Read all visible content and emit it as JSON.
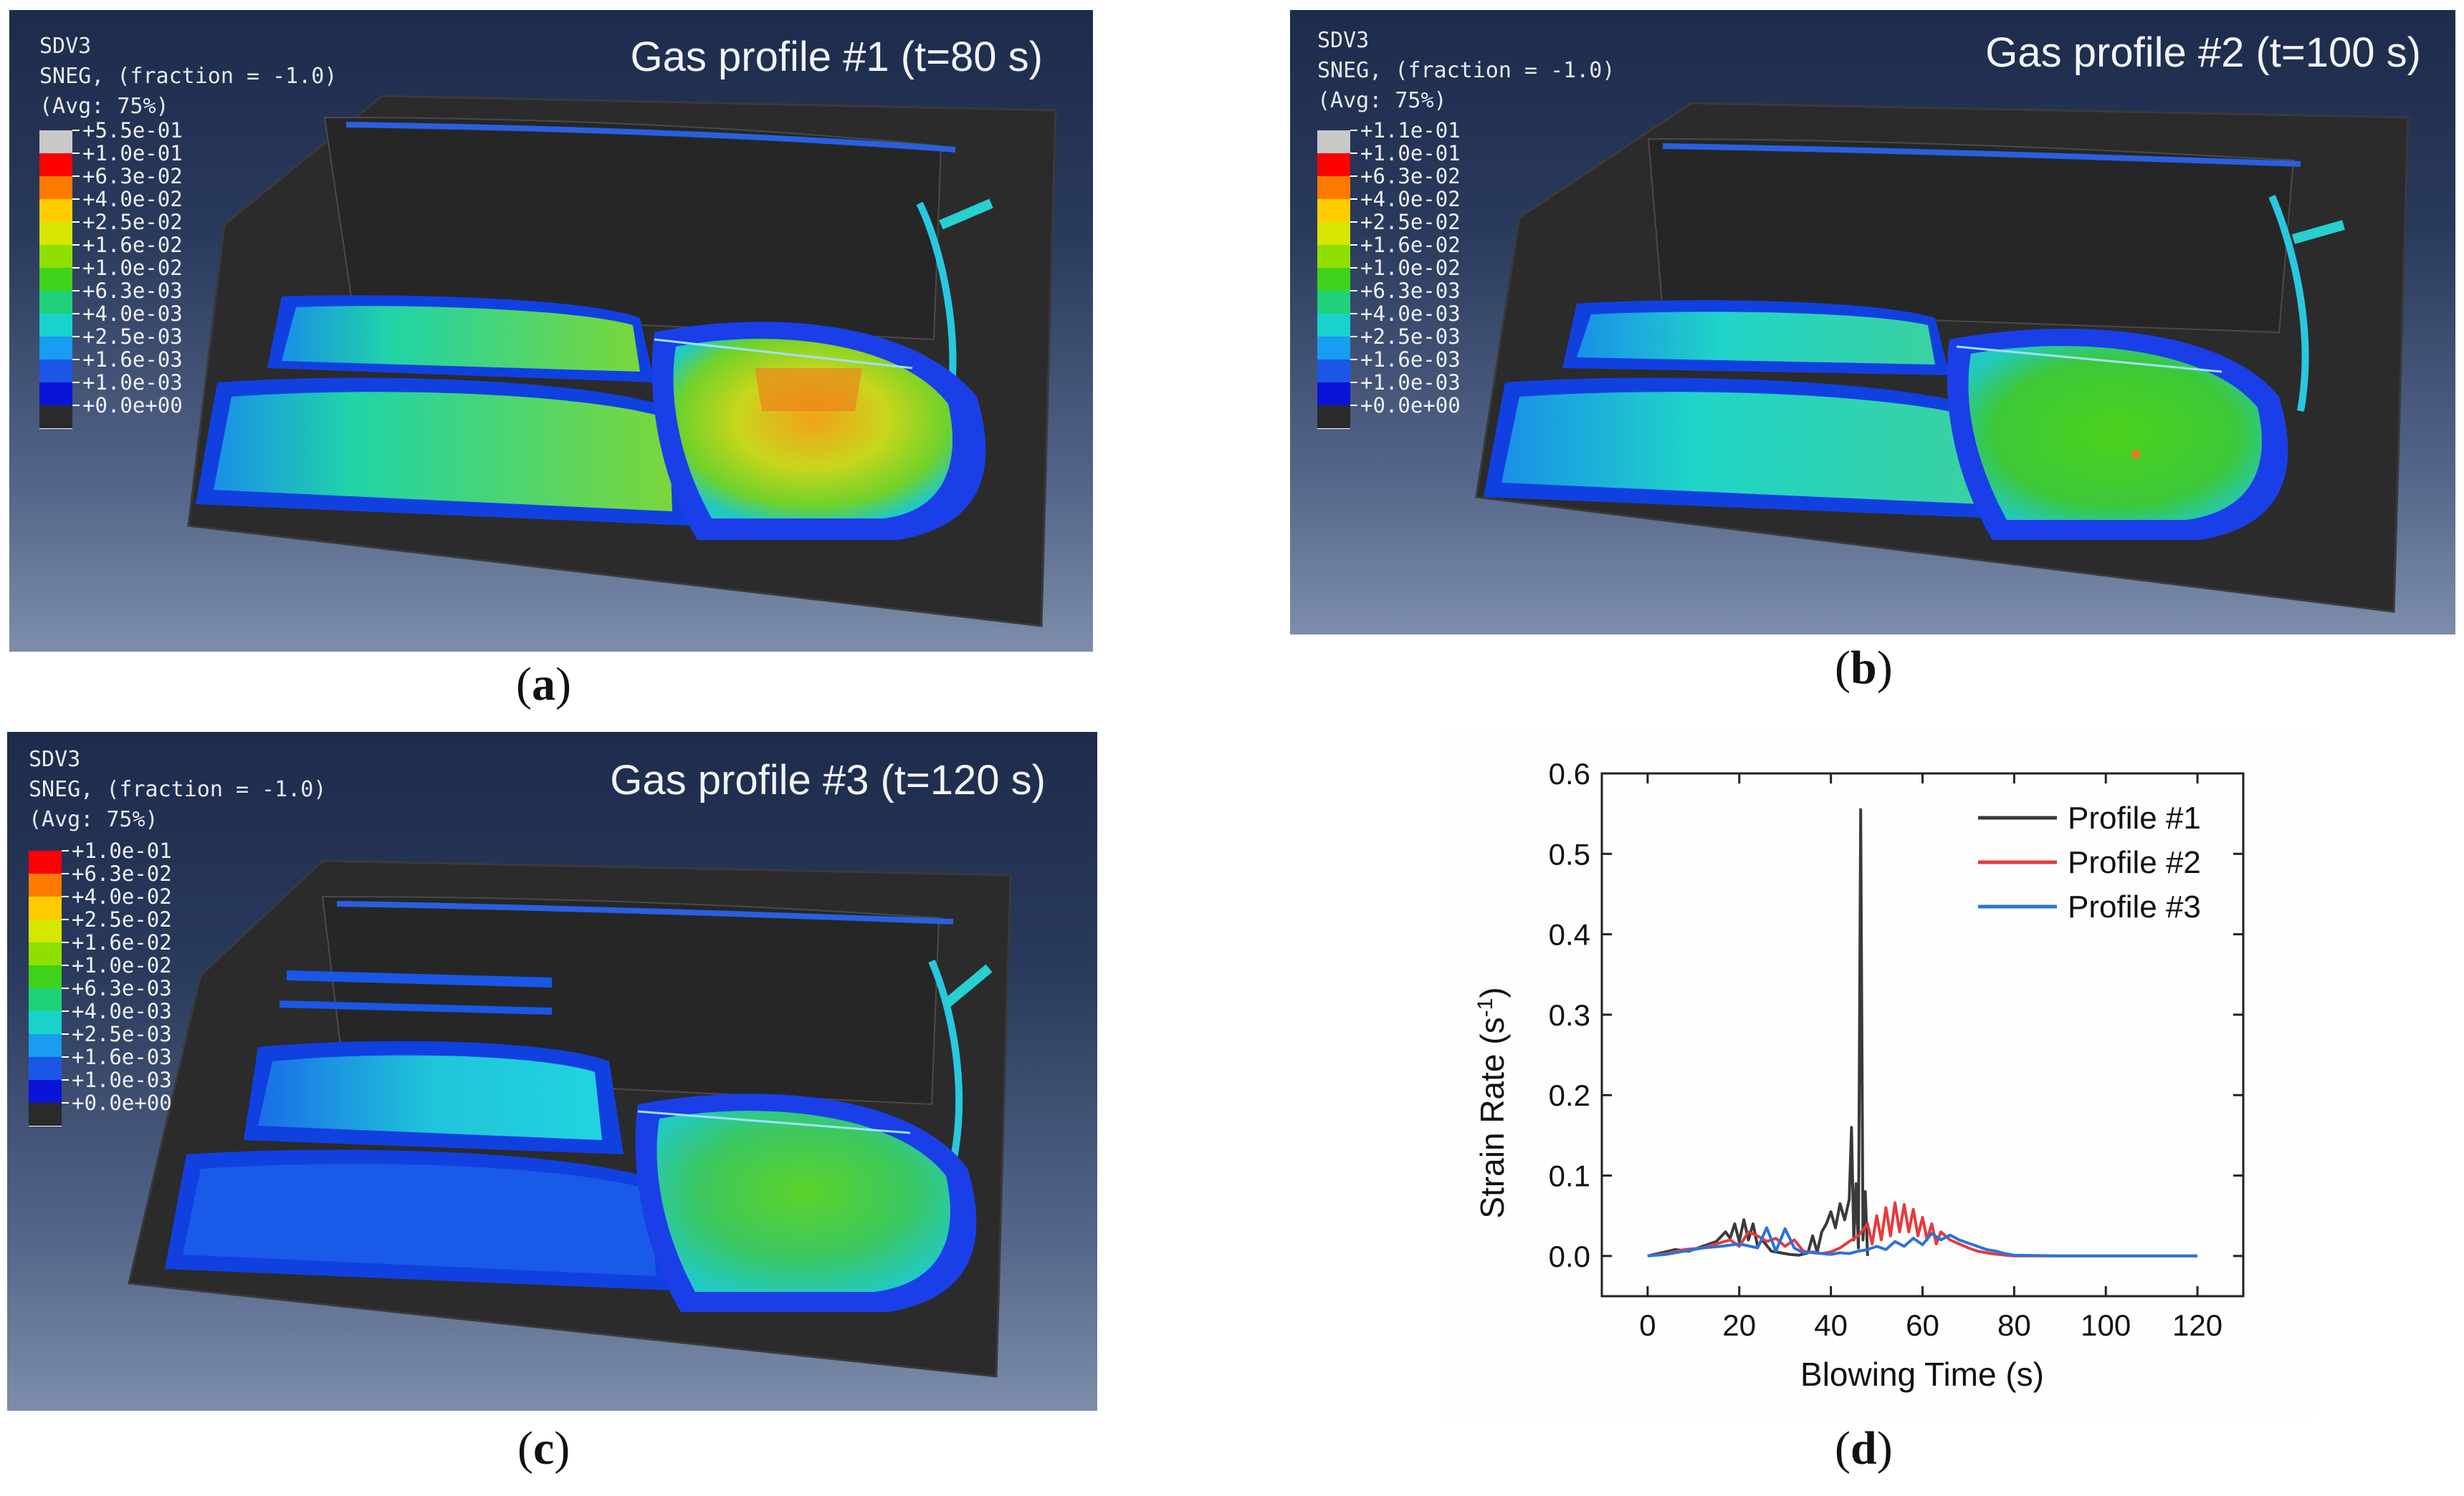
{
  "panels": [
    {
      "id": "a",
      "caption": "a",
      "header": [
        "SDV3",
        "SNEG, (fraction = -1.0)",
        "(Avg: 75%)"
      ],
      "title": "Gas profile #1 (t=80 s)",
      "legend": [
        "+5.5e-01",
        "+1.0e-01",
        "+6.3e-02",
        "+4.0e-02",
        "+2.5e-02",
        "+1.6e-02",
        "+1.0e-02",
        "+6.3e-03",
        "+4.0e-03",
        "+2.5e-03",
        "+1.6e-03",
        "+1.0e-03",
        "+0.0e+00"
      ]
    },
    {
      "id": "b",
      "caption": "b",
      "header": [
        "SDV3",
        "SNEG, (fraction = -1.0)",
        "(Avg: 75%)"
      ],
      "title": "Gas profile #2 (t=100 s)",
      "legend": [
        "+1.1e-01",
        "+1.0e-01",
        "+6.3e-02",
        "+4.0e-02",
        "+2.5e-02",
        "+1.6e-02",
        "+1.0e-02",
        "+6.3e-03",
        "+4.0e-03",
        "+2.5e-03",
        "+1.6e-03",
        "+1.0e-03",
        "+0.0e+00"
      ]
    },
    {
      "id": "c",
      "caption": "c",
      "header": [
        "SDV3",
        "SNEG, (fraction = -1.0)",
        "(Avg: 75%)"
      ],
      "title": "Gas profile #3 (t=120 s)",
      "legend": [
        "+1.0e-01",
        "+6.3e-02",
        "+4.0e-02",
        "+2.5e-02",
        "+1.6e-02",
        "+1.0e-02",
        "+6.3e-03",
        "+4.0e-03",
        "+2.5e-03",
        "+1.6e-03",
        "+1.0e-03",
        "+0.0e+00"
      ]
    }
  ],
  "legend_colors": [
    "#c8c8c8",
    "#ff0000",
    "#ff7a00",
    "#ffcc00",
    "#d6e600",
    "#8fe000",
    "#3fd21a",
    "#1fd27a",
    "#1ad2cc",
    "#1a9cf0",
    "#1a57e6",
    "#0a14d6",
    "#2a2a2a"
  ],
  "legend_colors_c": [
    "#ff0000",
    "#ff7a00",
    "#ffcc00",
    "#d6e600",
    "#8fe000",
    "#3fd21a",
    "#1fd27a",
    "#1ad2cc",
    "#1a9cf0",
    "#1a57e6",
    "#0a14d6",
    "#2a2a2a"
  ],
  "chart_caption": "d",
  "chart_data": {
    "type": "line",
    "xlabel": "Blowing Time (s)",
    "ylabel": "Strain Rate (s",
    "ylabel_sup": "-1",
    "ylabel_end": ")",
    "xlim": [
      -10,
      130
    ],
    "ylim": [
      -0.05,
      0.6
    ],
    "xticks": [
      0,
      20,
      40,
      60,
      80,
      100,
      120
    ],
    "yticks": [
      0.0,
      0.1,
      0.2,
      0.3,
      0.4,
      0.5,
      0.6
    ],
    "xtick_labels": [
      "0",
      "20",
      "40",
      "60",
      "80",
      "100",
      "120"
    ],
    "ytick_labels": [
      "0.0",
      "0.1",
      "0.2",
      "0.3",
      "0.4",
      "0.5",
      "0.6"
    ],
    "legend_position": "top-right",
    "series": [
      {
        "name": "Profile #1",
        "color": "#3a3a3a",
        "x": [
          0,
          3,
          6,
          9,
          12,
          15,
          17,
          18,
          19,
          20,
          21,
          22,
          23,
          24,
          25,
          27,
          29,
          31,
          33,
          35,
          36,
          37,
          38,
          39,
          40,
          41,
          42,
          43,
          44,
          44.5,
          45,
          45.5,
          46,
          46.5,
          47,
          47.5,
          48
        ],
        "y": [
          0,
          0.004,
          0.008,
          0.006,
          0.012,
          0.018,
          0.03,
          0.022,
          0.04,
          0.018,
          0.045,
          0.02,
          0.04,
          0.012,
          0.02,
          0.006,
          0.004,
          0.002,
          0.001,
          0.004,
          0.025,
          0.005,
          0.03,
          0.04,
          0.055,
          0.035,
          0.065,
          0.045,
          0.07,
          0.16,
          0.02,
          0.09,
          0.01,
          0.555,
          0.02,
          0.08,
          0.0
        ]
      },
      {
        "name": "Profile #2",
        "color": "#e53b3b",
        "x": [
          0,
          4,
          8,
          12,
          15,
          18,
          20,
          22,
          24,
          26,
          28,
          30,
          32,
          34,
          36,
          38,
          40,
          42,
          44,
          46,
          48,
          49,
          50,
          51,
          52,
          53,
          54,
          55,
          56,
          57,
          58,
          59,
          60,
          61,
          62,
          63,
          64,
          66,
          68,
          70,
          72,
          75,
          78,
          80,
          90,
          100,
          110,
          120
        ],
        "y": [
          0,
          0.003,
          0.008,
          0.01,
          0.015,
          0.02,
          0.012,
          0.03,
          0.025,
          0.018,
          0.022,
          0.012,
          0.02,
          0.006,
          0.004,
          0.003,
          0.005,
          0.01,
          0.018,
          0.025,
          0.04,
          0.015,
          0.05,
          0.02,
          0.06,
          0.025,
          0.066,
          0.03,
          0.064,
          0.03,
          0.058,
          0.025,
          0.048,
          0.02,
          0.04,
          0.015,
          0.03,
          0.02,
          0.015,
          0.01,
          0.006,
          0.003,
          0.001,
          0,
          0,
          0,
          0,
          0
        ]
      },
      {
        "name": "Profile #3",
        "color": "#2b73d6",
        "x": [
          0,
          4,
          8,
          12,
          16,
          20,
          24,
          26,
          28,
          30,
          32,
          34,
          36,
          38,
          40,
          42,
          44,
          46,
          48,
          50,
          52,
          54,
          56,
          58,
          60,
          62,
          64,
          66,
          68,
          70,
          72,
          74,
          76,
          78,
          80,
          90,
          100,
          110,
          120
        ],
        "y": [
          0,
          0.002,
          0.006,
          0.01,
          0.012,
          0.015,
          0.01,
          0.035,
          0.006,
          0.034,
          0.01,
          0.004,
          0.005,
          0.003,
          0.002,
          0.004,
          0.003,
          0.006,
          0.008,
          0.012,
          0.008,
          0.018,
          0.012,
          0.022,
          0.014,
          0.028,
          0.02,
          0.026,
          0.02,
          0.016,
          0.012,
          0.008,
          0.006,
          0.003,
          0.001,
          0,
          0,
          0,
          0
        ]
      }
    ]
  }
}
